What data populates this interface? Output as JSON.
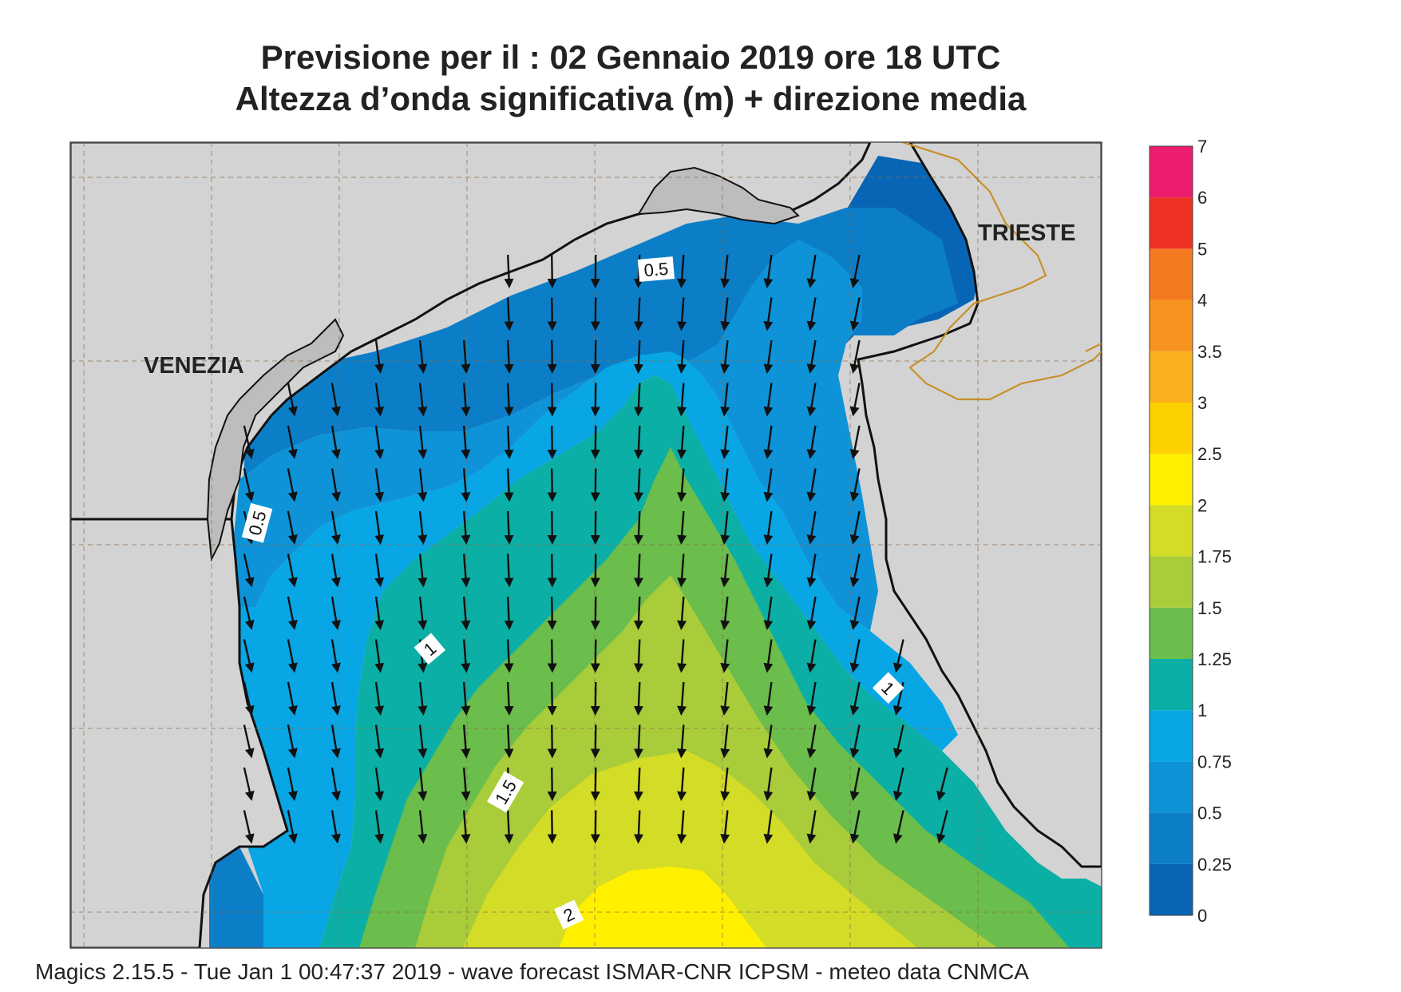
{
  "title": {
    "line1": "Previsione per il  :  02  Gennaio  2019   ore 18 UTC",
    "line2": "Altezza d’onda significativa (m) + direzione media"
  },
  "cities": [
    {
      "name": "VENEZIA"
    },
    {
      "name": "TRIESTE"
    }
  ],
  "contour_labels": [
    "0.5",
    "0.5",
    "1",
    "1",
    "1.5",
    "2"
  ],
  "colorbar": {
    "levels": [
      "0",
      "0.25",
      "0.5",
      "0.75",
      "1",
      "1.25",
      "1.5",
      "1.75",
      "2",
      "2.5",
      "3",
      "3.5",
      "4",
      "5",
      "6",
      "7"
    ],
    "colors": [
      "#0865b5",
      "#0c7ec8",
      "#0e93d8",
      "#08a6e4",
      "#0cafa6",
      "#6bbd4c",
      "#a9cc3a",
      "#d3dc26",
      "#fff000",
      "#fdd000",
      "#fbb01d",
      "#f79420",
      "#f47a22",
      "#ed3224",
      "#ec1c6e"
    ]
  },
  "map": {
    "land_color": "#d3d3d3",
    "coastline_color": "#111111",
    "border_color": "#c8902a",
    "arrow_direction": "south"
  },
  "footer": "Magics 2.15.5 - Tue Jan  1 00:47:37 2019 - wave forecast  ISMAR-CNR  ICPSM - meteo data   CNMCA"
}
